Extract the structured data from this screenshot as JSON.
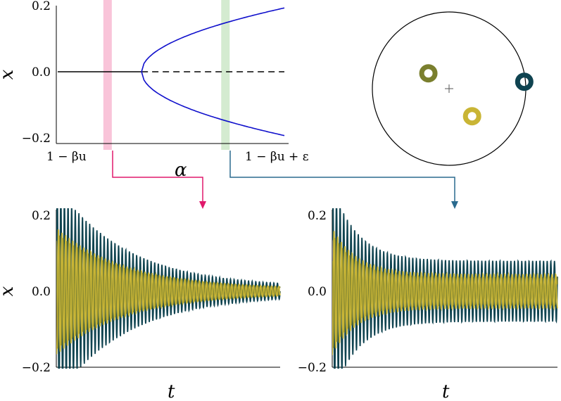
{
  "chart_data": [
    {
      "panel": "bifurcation",
      "type": "line",
      "xlabel": "α",
      "ylabel": "x",
      "x_tick_labels": [
        "1 − βu",
        "1 − βu + ε"
      ],
      "y_ticks": [
        0.2,
        0.0,
        -0.2
      ],
      "y_tick_labels": [
        "0.2",
        "0.0",
        "−0.2"
      ],
      "xlim": [
        0,
        1
      ],
      "ylim": [
        -0.2,
        0.2
      ],
      "bifurcation_alpha": 0.37,
      "series": [
        {
          "style": "solid",
          "color": "#000000",
          "x": [
            0,
            0.37
          ],
          "y": [
            0,
            0
          ]
        },
        {
          "style": "dashed",
          "color": "#000000",
          "x": [
            0.37,
            1.0
          ],
          "y": [
            0,
            0
          ]
        },
        {
          "style": "solid",
          "color": "#1010cc",
          "x": [
            0.37,
            0.4,
            0.5,
            0.6,
            0.7,
            0.8,
            0.9,
            1.0
          ],
          "y": [
            0.0,
            0.051,
            0.109,
            0.142,
            0.162,
            0.175,
            0.186,
            0.193
          ]
        },
        {
          "style": "solid",
          "color": "#1010cc",
          "x": [
            0.37,
            0.4,
            0.5,
            0.6,
            0.7,
            0.8,
            0.9,
            1.0
          ],
          "y": [
            0.0,
            -0.051,
            -0.109,
            -0.142,
            -0.162,
            -0.175,
            -0.186,
            -0.193
          ]
        }
      ],
      "highlights": [
        {
          "color": "#f9c4d9",
          "alpha_center": 0.22
        },
        {
          "color": "#d4ebd0",
          "alpha_center": 0.74
        }
      ]
    },
    {
      "panel": "ring",
      "type": "scatter",
      "description_free": true,
      "points": [
        {
          "color": "#7a7f2e",
          "x": -0.27,
          "y": 0.2
        },
        {
          "color": "#c9b535",
          "x": 0.3,
          "y": -0.36
        },
        {
          "color": "#0f4350",
          "x": 0.98,
          "y": 0.09
        }
      ],
      "center_marker": "+"
    },
    {
      "panel": "timeseries-damped",
      "type": "line",
      "xlabel": "t",
      "ylabel": "x",
      "y_tick_labels": [
        "0.2",
        "0.0",
        "−0.2"
      ],
      "ylim": [
        -0.2,
        0.2
      ],
      "series": [
        {
          "color": "#0f4350",
          "initial_amplitude": 0.2,
          "final_amplitude": 0.01
        },
        {
          "color": "#7a7f2e",
          "initial_amplitude": 0.11,
          "final_amplitude": 0.005
        },
        {
          "color": "#c9b535",
          "initial_amplitude": 0.12,
          "final_amplitude": 0.006
        }
      ]
    },
    {
      "panel": "timeseries-oscillating",
      "type": "line",
      "xlabel": "t",
      "ylabel": "",
      "y_tick_labels": [
        "0.2",
        "0.0",
        "−0.2"
      ],
      "ylim": [
        -0.2,
        0.2
      ],
      "series": [
        {
          "color": "#0f4350",
          "initial_amplitude": 0.2,
          "final_amplitude": 0.08
        },
        {
          "color": "#7a7f2e",
          "initial_amplitude": 0.11,
          "final_amplitude": 0.035
        },
        {
          "color": "#c9b535",
          "initial_amplitude": 0.12,
          "final_amplitude": 0.045
        }
      ]
    }
  ],
  "colors": {
    "pink_arrow": "#e0196b",
    "teal_arrow": "#2a6a8e"
  }
}
